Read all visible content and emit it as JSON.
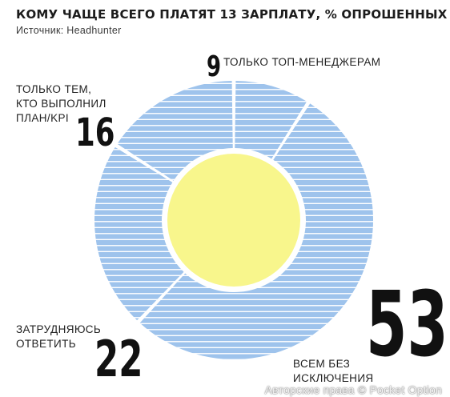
{
  "chart_data": {
    "type": "pie",
    "title": "КОМУ ЧАЩЕ ВСЕГО ПЛАТЯТ 13 ЗАРПЛАТУ, % ОПРОШЕННЫХ",
    "subtitle": "Источник: Headhunter",
    "slices": [
      {
        "label": "ТОЛЬКО ТОП-МЕНЕДЖЕРАМ",
        "value": 9
      },
      {
        "label": "ВСЕМ БЕЗ ИСКЛЮЧЕНИЯ",
        "value": 53
      },
      {
        "label": "ЗАТРУДНЯЮСЬ ОТВЕТИТЬ",
        "value": 22
      },
      {
        "label": "ТОЛЬКО ТЕМ, КТО ВЫПОЛНИЛ ПЛАН/KPI",
        "value": 16
      }
    ],
    "colors": {
      "ring": "#9ec3ec",
      "stripe": "#ffffff",
      "center": "#f8f68c",
      "gap": "#ffffff"
    }
  },
  "labels": {
    "top_managers_value": "9",
    "top_managers_text": "ТОЛЬКО ТОП-МЕНЕДЖЕРАМ",
    "kpi_value": "16",
    "kpi_text": "ТОЛЬКО ТЕМ,\nКТО ВЫПОЛНИЛ\nПЛАН/KPI",
    "unsure_value": "22",
    "unsure_text": "ЗАТРУДНЯЮСЬ\nОТВЕТИТЬ",
    "all_value": "53",
    "all_text": "ВСЕМ БЕЗ\nИСКЛЮЧЕНИЯ"
  },
  "watermark": "Авторские права © Pocket Option"
}
